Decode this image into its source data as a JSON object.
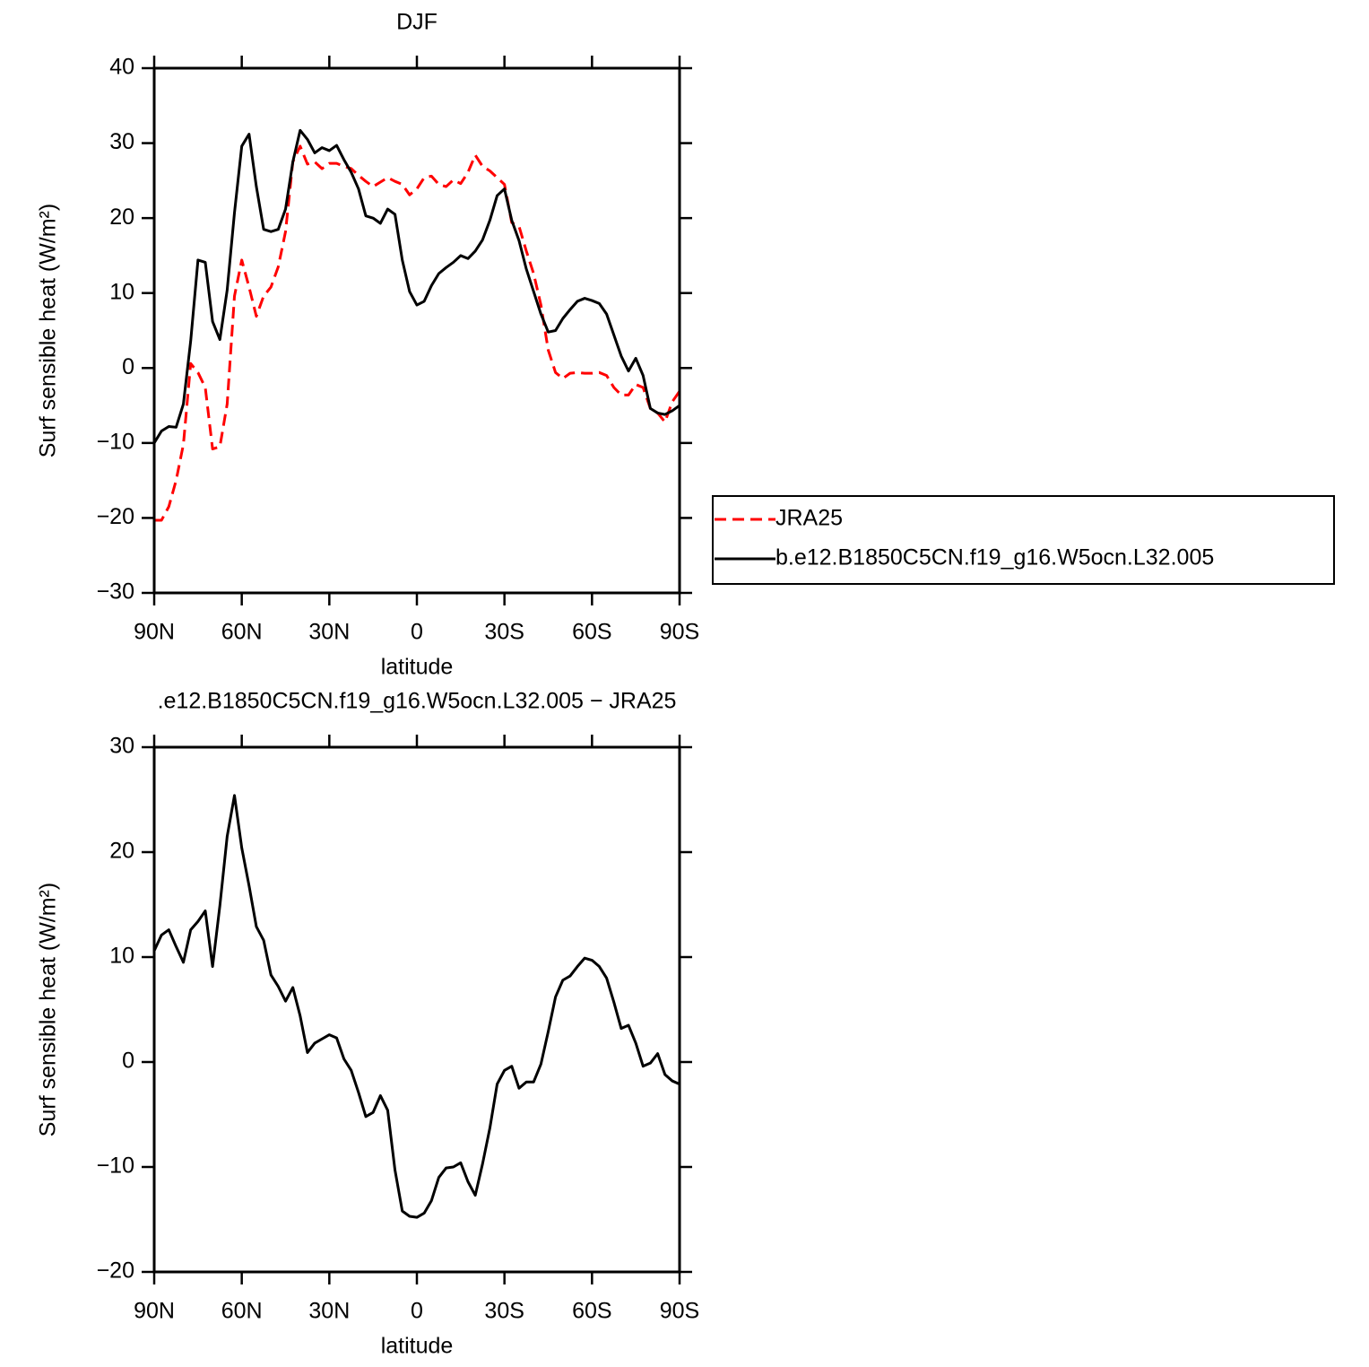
{
  "chart_data": [
    {
      "type": "line",
      "title": "DJF",
      "xlabel": "latitude",
      "ylabel": "Surf sensible heat (W/m²)",
      "x": [
        90,
        87.5,
        85,
        82.5,
        80,
        77.5,
        75,
        72.5,
        70,
        67.5,
        65,
        62.5,
        60,
        57.5,
        55,
        52.5,
        50,
        47.5,
        45,
        42.5,
        40,
        37.5,
        35,
        32.5,
        30,
        27.5,
        25,
        22.5,
        20,
        17.5,
        15,
        12.5,
        10,
        7.5,
        5,
        2.5,
        0,
        -2.5,
        -5,
        -7.5,
        -10,
        -12.5,
        -15,
        -17.5,
        -20,
        -22.5,
        -25,
        -27.5,
        -30,
        -32.5,
        -35,
        -37.5,
        -40,
        -42.5,
        -45,
        -47.5,
        -50,
        -52.5,
        -55,
        -57.5,
        -60,
        -62.5,
        -65,
        -67.5,
        -70,
        -72.5,
        -75,
        -77.5,
        -80,
        -82.5,
        -85,
        -87.5,
        -90
      ],
      "xlim": [
        90,
        -90
      ],
      "xticks": [
        {
          "value": 90,
          "label": "90N"
        },
        {
          "value": 60,
          "label": "60N"
        },
        {
          "value": 30,
          "label": "30N"
        },
        0,
        {
          "value": -30,
          "label": "30S"
        },
        {
          "value": -60,
          "label": "60S"
        },
        {
          "value": -90,
          "label": "90S"
        }
      ],
      "ylim": [
        -30,
        40
      ],
      "yticks": [
        {
          "value": -30,
          "label": "−30"
        },
        {
          "value": -20,
          "label": "−20"
        },
        {
          "value": -10,
          "label": "−10"
        },
        0,
        10,
        20,
        30,
        40
      ],
      "legend": "right",
      "series": [
        {
          "name": "JRA25",
          "color": "#ff0000",
          "linestyle": "dashed",
          "values": [
            -20.3,
            -20.3,
            -18.5,
            -15,
            -10.2,
            0.6,
            -0.6,
            -2.6,
            -10.8,
            -10.5,
            -4.8,
            9.6,
            14.4,
            10.8,
            6.9,
            9.6,
            10.8,
            13.5,
            18.2,
            27.5,
            29.6,
            27.2,
            27.5,
            26.6,
            27.3,
            27.3,
            26.9,
            26.6,
            25.7,
            24.9,
            24.2,
            24.8,
            25.4,
            24.9,
            24.5,
            23.1,
            23.9,
            25.4,
            25.6,
            24.5,
            24.2,
            25.1,
            24.6,
            26.1,
            28.4,
            26.9,
            26.3,
            25.4,
            24.5,
            19.4,
            18.9,
            15.6,
            12.6,
            8.4,
            2.4,
            -0.6,
            -1.4,
            -0.7,
            -0.6,
            -0.7,
            -0.7,
            -0.6,
            -1.0,
            -2.6,
            -3.6,
            -3.6,
            -2.2,
            -2.6,
            -5.4,
            -6.0,
            -7.2,
            -4.5,
            -3.1
          ]
        },
        {
          "name": "b.e12.B1850C5CN.f19_g16.W5ocn.L32.005",
          "color": "#000000",
          "linestyle": "solid",
          "values": [
            -10,
            -8.4,
            -7.8,
            -7.9,
            -4.8,
            3.6,
            14.4,
            14.1,
            6.2,
            3.8,
            10.4,
            20.7,
            29.6,
            31.2,
            24.2,
            18.5,
            18.2,
            18.5,
            21.2,
            27.5,
            31.7,
            30.5,
            28.7,
            29.4,
            29.0,
            29.7,
            27.8,
            26.1,
            23.9,
            20.3,
            20.0,
            19.3,
            21.2,
            20.5,
            14.4,
            10.2,
            8.4,
            8.9,
            11.0,
            12.6,
            13.4,
            14.1,
            15.0,
            14.6,
            15.6,
            17.1,
            19.7,
            23.0,
            23.9,
            19.7,
            17.0,
            13.2,
            10.2,
            7.2,
            4.8,
            5.0,
            6.6,
            7.8,
            8.9,
            9.3,
            9.0,
            8.6,
            7.2,
            4.4,
            1.6,
            -0.4,
            1.3,
            -1.0,
            -5.4,
            -6.0,
            -6.2,
            -5.7,
            -5.0
          ]
        }
      ]
    },
    {
      "type": "line",
      "title": ".e12.B1850C5CN.f19_g16.W5ocn.L32.005 − JRA25",
      "xlabel": "latitude",
      "ylabel": "Surf sensible heat (W/m²)",
      "x": [
        90,
        87.5,
        85,
        82.5,
        80,
        77.5,
        75,
        72.5,
        70,
        67.5,
        65,
        62.5,
        60,
        57.5,
        55,
        52.5,
        50,
        47.5,
        45,
        42.5,
        40,
        37.5,
        35,
        32.5,
        30,
        27.5,
        25,
        22.5,
        20,
        17.5,
        15,
        12.5,
        10,
        7.5,
        5,
        2.5,
        0,
        -2.5,
        -5,
        -7.5,
        -10,
        -12.5,
        -15,
        -17.5,
        -20,
        -22.5,
        -25,
        -27.5,
        -30,
        -32.5,
        -35,
        -37.5,
        -40,
        -42.5,
        -45,
        -47.5,
        -50,
        -52.5,
        -55,
        -57.5,
        -60,
        -62.5,
        -65,
        -67.5,
        -70,
        -72.5,
        -75,
        -77.5,
        -80,
        -82.5,
        -85,
        -87.5,
        -90
      ],
      "xlim": [
        90,
        -90
      ],
      "xticks": [
        {
          "value": 90,
          "label": "90N"
        },
        {
          "value": 60,
          "label": "60N"
        },
        {
          "value": 30,
          "label": "30N"
        },
        0,
        {
          "value": -30,
          "label": "30S"
        },
        {
          "value": -60,
          "label": "60S"
        },
        {
          "value": -90,
          "label": "90S"
        }
      ],
      "ylim": [
        -20,
        30
      ],
      "yticks": [
        {
          "value": -20,
          "label": "−20"
        },
        {
          "value": -10,
          "label": "−10"
        },
        0,
        10,
        20,
        30
      ],
      "series": [
        {
          "color": "#000000",
          "linestyle": "solid",
          "values": [
            10.6,
            12.1,
            12.6,
            11.0,
            9.5,
            12.6,
            13.4,
            14.4,
            9.1,
            14.9,
            21.5,
            25.4,
            20.4,
            16.8,
            12.9,
            11.6,
            8.3,
            7.2,
            5.8,
            7.1,
            4.4,
            0.9,
            1.8,
            2.2,
            2.6,
            2.3,
            0.3,
            -0.8,
            -2.9,
            -5.2,
            -4.8,
            -3.2,
            -4.6,
            -10.3,
            -14.2,
            -14.7,
            -14.8,
            -14.4,
            -13.2,
            -11.0,
            -10.1,
            -10.0,
            -9.6,
            -11.4,
            -12.7,
            -9.7,
            -6.3,
            -2.1,
            -0.8,
            -0.4,
            -2.5,
            -1.9,
            -1.9,
            -0.2,
            2.9,
            6.2,
            7.8,
            8.2,
            9.1,
            9.9,
            9.7,
            9.1,
            8.0,
            5.7,
            3.2,
            3.5,
            1.8,
            -0.4,
            -0.1,
            0.8,
            -1.2,
            -1.8,
            -2.1
          ]
        }
      ]
    }
  ]
}
